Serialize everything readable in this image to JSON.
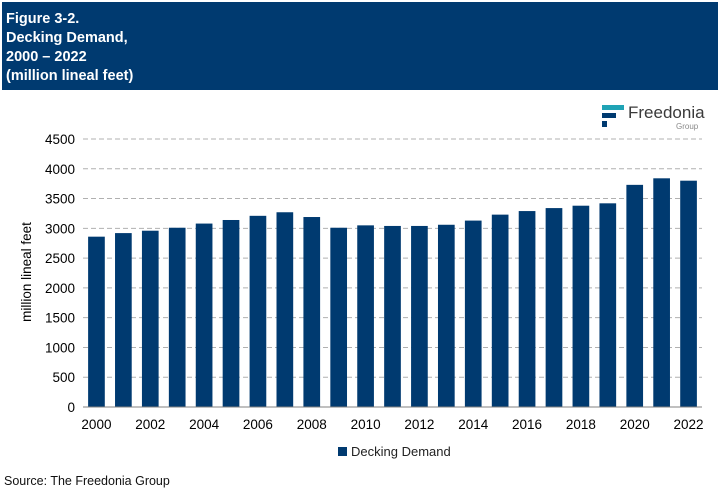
{
  "header": {
    "lines": [
      "Figure 3-2.",
      "Decking Demand,",
      "2000 – 2022",
      "(million lineal feet)"
    ]
  },
  "logo": {
    "name": "Freedonia",
    "sub": "Group",
    "icon": "freedonia-logo-icon"
  },
  "source": "Source: The Freedonia Group",
  "colors": {
    "header_bg": "#003a70",
    "bar": "#003a70",
    "logo_teal": "#1fa3b5"
  },
  "chart_data": {
    "type": "bar",
    "x": [
      2000,
      2001,
      2002,
      2003,
      2004,
      2005,
      2006,
      2007,
      2008,
      2009,
      2010,
      2011,
      2012,
      2013,
      2014,
      2015,
      2016,
      2017,
      2018,
      2019,
      2020,
      2021,
      2022
    ],
    "x_tick_labels": [
      "2000",
      "2002",
      "2004",
      "2006",
      "2008",
      "2010",
      "2012",
      "2014",
      "2016",
      "2018",
      "2020",
      "2022"
    ],
    "series": [
      {
        "name": "Decking Demand",
        "values": [
          2860,
          2920,
          2960,
          3010,
          3080,
          3140,
          3210,
          3270,
          3190,
          3010,
          3050,
          3040,
          3040,
          3060,
          3130,
          3230,
          3290,
          3340,
          3380,
          3420,
          3730,
          3840,
          3800
        ]
      }
    ],
    "ylabel": "million lineal feet",
    "ylim": [
      0,
      4500
    ],
    "yticks": [
      0,
      500,
      1000,
      1500,
      2000,
      2500,
      3000,
      3500,
      4000,
      4500
    ],
    "grid": "horizontal dashed",
    "legend": "bottom-center"
  }
}
